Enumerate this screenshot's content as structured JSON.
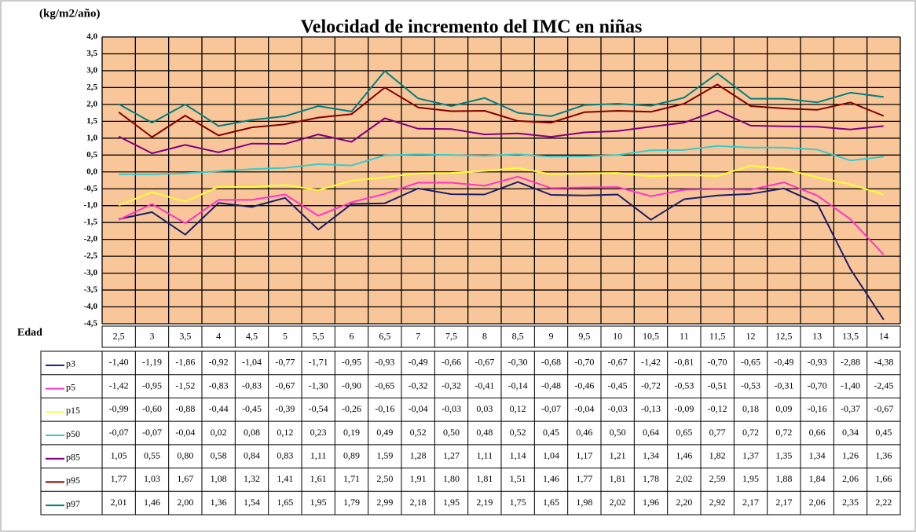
{
  "chart_data": {
    "type": "line",
    "title": "Velocidad de incremento del IMC en niñas",
    "y_label": "(kg/m2/año)",
    "x_label": "Edad",
    "categories": [
      "2,5",
      "3",
      "3,5",
      "4",
      "4,5",
      "5",
      "5,5",
      "6",
      "6,5",
      "7",
      "7,5",
      "8",
      "8,5",
      "9",
      "9,5",
      "10",
      "10,5",
      "11",
      "11,5",
      "12",
      "12,5",
      "13",
      "13,5",
      "14"
    ],
    "ylim": [
      -4.5,
      4.0
    ],
    "yticks": [
      {
        "value": 4.0,
        "label": "4,0"
      },
      {
        "value": 3.5,
        "label": "3,5"
      },
      {
        "value": 3.0,
        "label": "3,0"
      },
      {
        "value": 2.5,
        "label": "2,5"
      },
      {
        "value": 2.0,
        "label": "2,0"
      },
      {
        "value": 1.5,
        "label": "1,5"
      },
      {
        "value": 1.0,
        "label": "1,0"
      },
      {
        "value": 0.5,
        "label": "0,5"
      },
      {
        "value": 0.0,
        "label": "0,0"
      },
      {
        "value": -0.5,
        "label": "-0,5"
      },
      {
        "value": -1.0,
        "label": "-1,0"
      },
      {
        "value": -1.5,
        "label": "-1,5"
      },
      {
        "value": -2.0,
        "label": "-2,0"
      },
      {
        "value": -2.5,
        "label": "-2,5"
      },
      {
        "value": -3.0,
        "label": "-3,0"
      },
      {
        "value": -3.5,
        "label": "-3,5"
      },
      {
        "value": -4.0,
        "label": "-4,0"
      },
      {
        "value": -4.5,
        "label": "-4,5"
      }
    ],
    "grid": true,
    "series": [
      {
        "name": "p3",
        "color": "#1c1c6e",
        "values": [
          -1.4,
          -1.19,
          -1.86,
          -0.92,
          -1.04,
          -0.77,
          -1.71,
          -0.95,
          -0.93,
          -0.49,
          -0.66,
          -0.67,
          -0.3,
          -0.68,
          -0.7,
          -0.67,
          -1.42,
          -0.81,
          -0.7,
          -0.65,
          -0.49,
          -0.93,
          -2.88,
          -4.38
        ],
        "value_labels": [
          "-1,40",
          "-1,19",
          "-1,86",
          "-0,92",
          "-1,04",
          "-0,77",
          "-1,71",
          "-0,95",
          "-0,93",
          "-0,49",
          "-0,66",
          "-0,67",
          "-0,30",
          "-0,68",
          "-0,70",
          "-0,67",
          "-1,42",
          "-0,81",
          "-0,70",
          "-0,65",
          "-0,49",
          "-0,93",
          "-2,88",
          "-4,38"
        ]
      },
      {
        "name": "p5",
        "color": "#ff33cc",
        "values": [
          -1.42,
          -0.95,
          -1.52,
          -0.83,
          -0.83,
          -0.67,
          -1.3,
          -0.9,
          -0.65,
          -0.32,
          -0.32,
          -0.41,
          -0.14,
          -0.48,
          -0.46,
          -0.45,
          -0.72,
          -0.53,
          -0.51,
          -0.53,
          -0.31,
          -0.7,
          -1.4,
          -2.45
        ],
        "value_labels": [
          "-1,42",
          "-0,95",
          "-1,52",
          "-0,83",
          "-0,83",
          "-0,67",
          "-1,30",
          "-0,90",
          "-0,65",
          "-0,32",
          "-0,32",
          "-0,41",
          "-0,14",
          "-0,48",
          "-0,46",
          "-0,45",
          "-0,72",
          "-0,53",
          "-0,51",
          "-0,53",
          "-0,31",
          "-0,70",
          "-1,40",
          "-2,45"
        ]
      },
      {
        "name": "p15",
        "color": "#ffff33",
        "values": [
          -0.99,
          -0.6,
          -0.88,
          -0.44,
          -0.45,
          -0.39,
          -0.54,
          -0.26,
          -0.16,
          -0.04,
          -0.03,
          0.03,
          0.12,
          -0.07,
          -0.04,
          -0.03,
          -0.13,
          -0.09,
          -0.12,
          0.18,
          0.09,
          -0.16,
          -0.37,
          -0.67
        ],
        "value_labels": [
          "-0,99",
          "-0,60",
          "-0,88",
          "-0,44",
          "-0,45",
          "-0,39",
          "-0,54",
          "-0,26",
          "-0,16",
          "-0,04",
          "-0,03",
          "0,03",
          "0,12",
          "-0,07",
          "-0,04",
          "-0,03",
          "-0,13",
          "-0,09",
          "-0,12",
          "0,18",
          "0,09",
          "-0,16",
          "-0,37",
          "-0,67"
        ]
      },
      {
        "name": "p50",
        "color": "#33cccc",
        "values": [
          -0.07,
          -0.07,
          -0.04,
          0.02,
          0.08,
          0.12,
          0.23,
          0.19,
          0.49,
          0.52,
          0.5,
          0.48,
          0.52,
          0.45,
          0.46,
          0.5,
          0.64,
          0.65,
          0.77,
          0.72,
          0.72,
          0.66,
          0.34,
          0.45
        ],
        "value_labels": [
          "-0,07",
          "-0,07",
          "-0,04",
          "0,02",
          "0,08",
          "0,12",
          "0,23",
          "0,19",
          "0,49",
          "0,52",
          "0,50",
          "0,48",
          "0,52",
          "0,45",
          "0,46",
          "0,50",
          "0,64",
          "0,65",
          "0,77",
          "0,72",
          "0,72",
          "0,66",
          "0,34",
          "0,45"
        ]
      },
      {
        "name": "p85",
        "color": "#800080",
        "values": [
          1.05,
          0.55,
          0.8,
          0.58,
          0.84,
          0.83,
          1.11,
          0.89,
          1.59,
          1.28,
          1.27,
          1.11,
          1.14,
          1.04,
          1.17,
          1.21,
          1.34,
          1.46,
          1.82,
          1.37,
          1.35,
          1.34,
          1.26,
          1.36
        ],
        "value_labels": [
          "1,05",
          "0,55",
          "0,80",
          "0,58",
          "0,84",
          "0,83",
          "1,11",
          "0,89",
          "1,59",
          "1,28",
          "1,27",
          "1,11",
          "1,14",
          "1,04",
          "1,17",
          "1,21",
          "1,34",
          "1,46",
          "1,82",
          "1,37",
          "1,35",
          "1,34",
          "1,26",
          "1,36"
        ]
      },
      {
        "name": "p95",
        "color": "#800000",
        "values": [
          1.77,
          1.03,
          1.67,
          1.08,
          1.32,
          1.41,
          1.61,
          1.71,
          2.5,
          1.91,
          1.8,
          1.81,
          1.51,
          1.46,
          1.77,
          1.81,
          1.78,
          2.02,
          2.59,
          1.95,
          1.88,
          1.84,
          2.06,
          1.66
        ],
        "value_labels": [
          "1,77",
          "1,03",
          "1,67",
          "1,08",
          "1,32",
          "1,41",
          "1,61",
          "1,71",
          "2,50",
          "1,91",
          "1,80",
          "1,81",
          "1,51",
          "1,46",
          "1,77",
          "1,81",
          "1,78",
          "2,02",
          "2,59",
          "1,95",
          "1,88",
          "1,84",
          "2,06",
          "1,66"
        ]
      },
      {
        "name": "p97",
        "color": "#008080",
        "values": [
          2.01,
          1.46,
          2.0,
          1.36,
          1.54,
          1.65,
          1.95,
          1.79,
          2.99,
          2.18,
          1.95,
          2.19,
          1.75,
          1.65,
          1.98,
          2.02,
          1.96,
          2.2,
          2.92,
          2.17,
          2.17,
          2.06,
          2.35,
          2.22
        ],
        "value_labels": [
          "2,01",
          "1,46",
          "2,00",
          "1,36",
          "1,54",
          "1,65",
          "1,95",
          "1,79",
          "2,99",
          "2,18",
          "1,95",
          "2,19",
          "1,75",
          "1,65",
          "1,98",
          "2,02",
          "1,96",
          "2,20",
          "2,92",
          "2,17",
          "2,17",
          "2,06",
          "2,35",
          "2,22"
        ]
      }
    ]
  }
}
